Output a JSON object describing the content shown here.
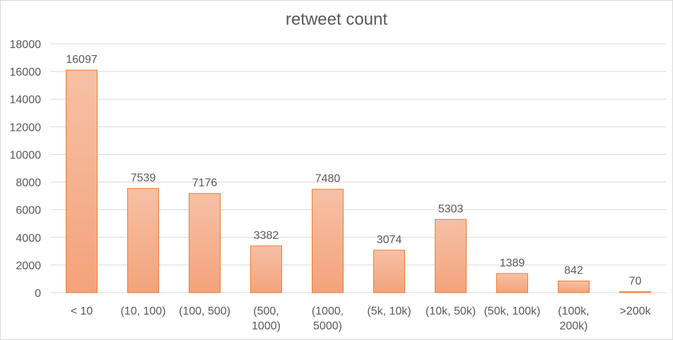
{
  "chart_data": {
    "type": "bar",
    "title": "retweet count",
    "categories": [
      [
        "< 10"
      ],
      [
        "(10, 100)"
      ],
      [
        "(100, 500)"
      ],
      [
        "(500,",
        "1000)"
      ],
      [
        "(1000,",
        "5000)"
      ],
      [
        "(5k, 10k)"
      ],
      [
        "(10k, 50k)"
      ],
      [
        "(50k, 100k)"
      ],
      [
        "(100k,",
        "200k)"
      ],
      [
        ">200k"
      ]
    ],
    "values": [
      16097,
      7539,
      7176,
      3382,
      7480,
      3074,
      5303,
      1389,
      842,
      70
    ],
    "ylim": [
      0,
      18000
    ],
    "yticks": [
      0,
      2000,
      4000,
      6000,
      8000,
      10000,
      12000,
      14000,
      16000,
      18000
    ],
    "grid": true,
    "data_labels": true,
    "colors": {
      "bar_top": "#f6c0a6",
      "bar_bottom": "#f4a37b",
      "bar_border": "#ed7d31",
      "text": "#595959",
      "grid": "#d9d9d9"
    }
  }
}
